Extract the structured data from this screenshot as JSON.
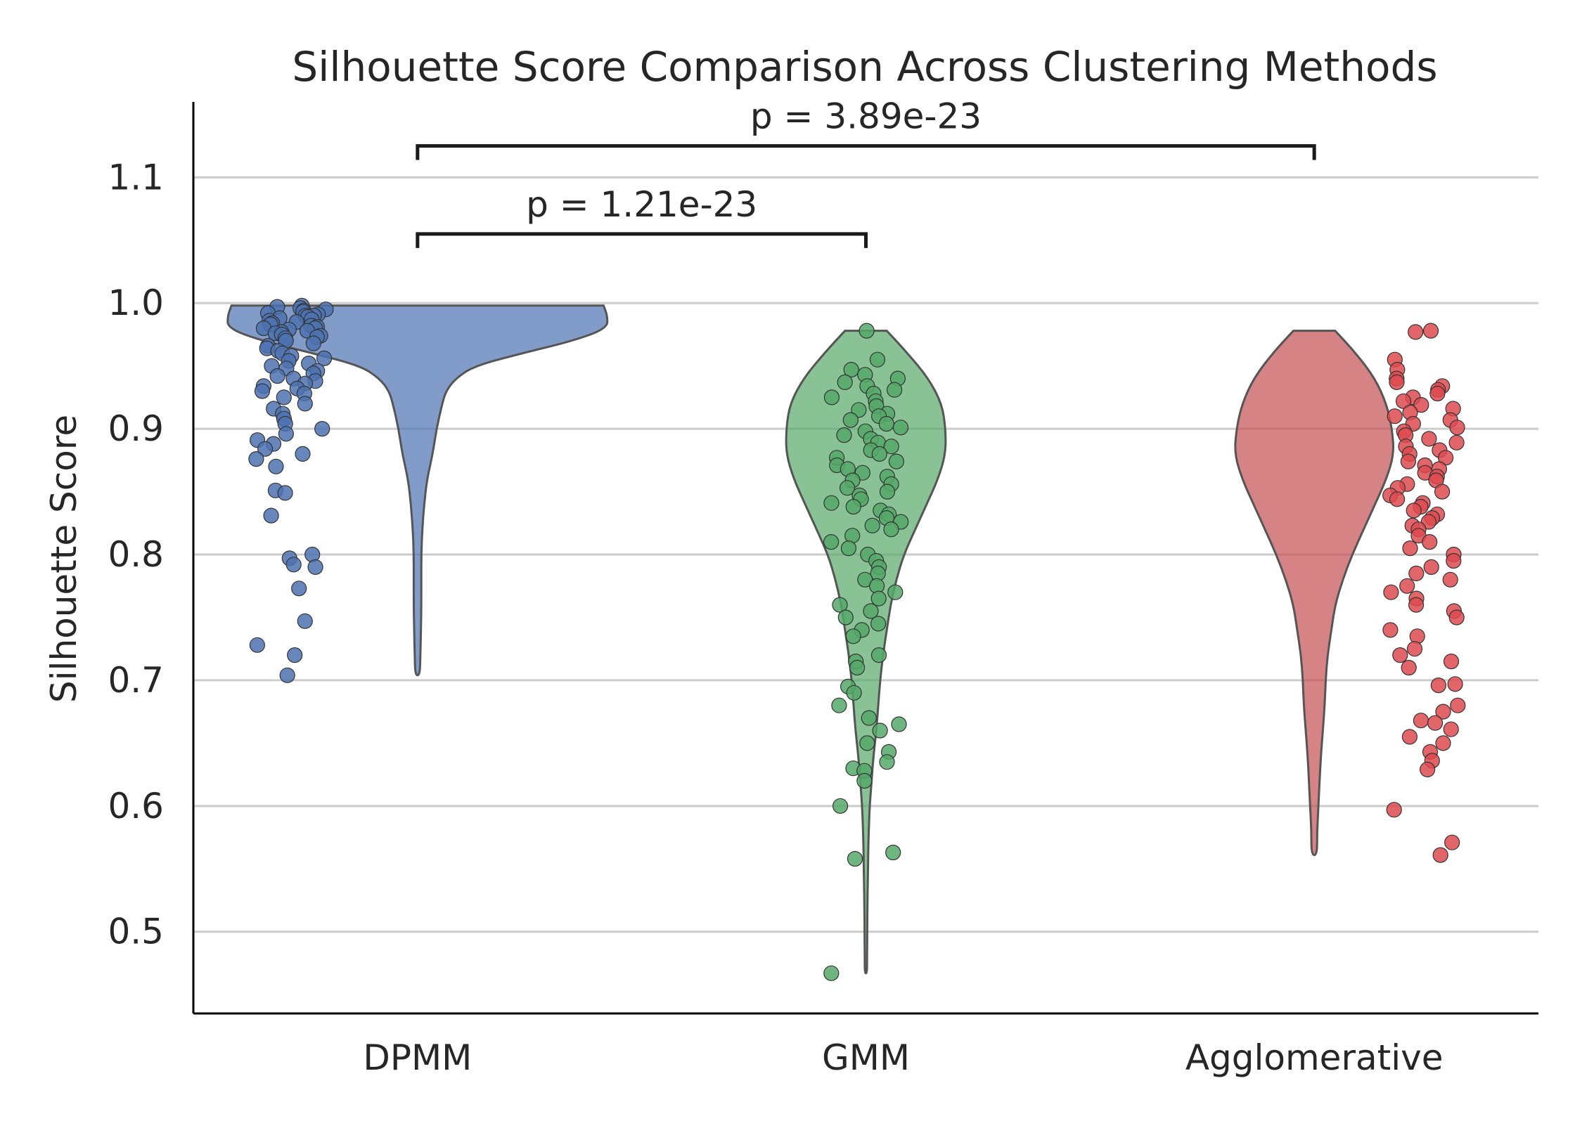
{
  "chart_data": {
    "type": "violin",
    "title": "Silhouette Score Comparison Across Clustering Methods",
    "xlabel": "",
    "ylabel": "Silhouette Score",
    "ylim": [
      0.435,
      1.16
    ],
    "yticks": [
      "0.5",
      "0.6",
      "0.7",
      "0.8",
      "0.9",
      "1.0",
      "1.1"
    ],
    "grid": "horizontal",
    "categories": [
      "DPMM",
      "GMM",
      "Agglomerative"
    ],
    "colors": [
      "#4c72b0",
      "#55a868",
      "#c44e52"
    ],
    "point_colors": [
      "#4c72b0",
      "#55a868",
      "#dd4a4f"
    ],
    "violins": [
      {
        "name": "DPMM",
        "range": [
          0.704,
          0.998
        ],
        "density": [
          [
            0.998,
            0.98
          ],
          [
            0.99,
            1.0
          ],
          [
            0.98,
            1.0
          ],
          [
            0.97,
            0.82
          ],
          [
            0.96,
            0.55
          ],
          [
            0.95,
            0.3
          ],
          [
            0.94,
            0.2
          ],
          [
            0.93,
            0.15
          ],
          [
            0.92,
            0.13
          ],
          [
            0.9,
            0.1
          ],
          [
            0.88,
            0.08
          ],
          [
            0.86,
            0.05
          ],
          [
            0.84,
            0.035
          ],
          [
            0.82,
            0.025
          ],
          [
            0.8,
            0.02
          ],
          [
            0.78,
            0.02
          ],
          [
            0.76,
            0.02
          ],
          [
            0.74,
            0.018
          ],
          [
            0.72,
            0.015
          ],
          [
            0.704,
            0.012
          ]
        ]
      },
      {
        "name": "GMM",
        "range": [
          0.467,
          0.978
        ],
        "density": [
          [
            0.978,
            0.11
          ],
          [
            0.96,
            0.22
          ],
          [
            0.94,
            0.33
          ],
          [
            0.92,
            0.4
          ],
          [
            0.9,
            0.42
          ],
          [
            0.88,
            0.42
          ],
          [
            0.86,
            0.38
          ],
          [
            0.84,
            0.32
          ],
          [
            0.82,
            0.26
          ],
          [
            0.8,
            0.2
          ],
          [
            0.78,
            0.16
          ],
          [
            0.76,
            0.13
          ],
          [
            0.74,
            0.11
          ],
          [
            0.72,
            0.09
          ],
          [
            0.7,
            0.075
          ],
          [
            0.68,
            0.065
          ],
          [
            0.66,
            0.055
          ],
          [
            0.64,
            0.04
          ],
          [
            0.62,
            0.03
          ],
          [
            0.6,
            0.02
          ],
          [
            0.58,
            0.015
          ],
          [
            0.56,
            0.012
          ],
          [
            0.54,
            0.01
          ],
          [
            0.52,
            0.008
          ],
          [
            0.5,
            0.007
          ],
          [
            0.48,
            0.006
          ],
          [
            0.467,
            0.006
          ]
        ]
      },
      {
        "name": "Agglomerative",
        "range": [
          0.561,
          0.978
        ],
        "density": [
          [
            0.978,
            0.11
          ],
          [
            0.96,
            0.22
          ],
          [
            0.94,
            0.32
          ],
          [
            0.92,
            0.38
          ],
          [
            0.9,
            0.41
          ],
          [
            0.88,
            0.42
          ],
          [
            0.86,
            0.38
          ],
          [
            0.84,
            0.32
          ],
          [
            0.82,
            0.26
          ],
          [
            0.8,
            0.2
          ],
          [
            0.78,
            0.15
          ],
          [
            0.76,
            0.11
          ],
          [
            0.74,
            0.09
          ],
          [
            0.72,
            0.07
          ],
          [
            0.7,
            0.06
          ],
          [
            0.68,
            0.055
          ],
          [
            0.66,
            0.045
          ],
          [
            0.64,
            0.035
          ],
          [
            0.62,
            0.028
          ],
          [
            0.6,
            0.022
          ],
          [
            0.58,
            0.015
          ],
          [
            0.561,
            0.015
          ]
        ]
      }
    ],
    "points": [
      [
        0.998,
        0.997,
        0.996,
        0.995,
        0.994,
        0.993,
        0.992,
        0.991,
        0.99,
        0.99,
        0.989,
        0.988,
        0.987,
        0.986,
        0.985,
        0.984,
        0.983,
        0.982,
        0.981,
        0.98,
        0.98,
        0.979,
        0.978,
        0.977,
        0.976,
        0.975,
        0.974,
        0.973,
        0.972,
        0.97,
        0.968,
        0.966,
        0.964,
        0.962,
        0.96,
        0.958,
        0.956,
        0.954,
        0.952,
        0.95,
        0.948,
        0.946,
        0.944,
        0.942,
        0.94,
        0.938,
        0.936,
        0.934,
        0.932,
        0.93,
        0.928,
        0.925,
        0.92,
        0.916,
        0.912,
        0.908,
        0.904,
        0.9,
        0.896,
        0.891,
        0.888,
        0.884,
        0.88,
        0.876,
        0.87,
        0.851,
        0.849,
        0.831,
        0.8,
        0.797,
        0.792,
        0.79,
        0.773,
        0.747,
        0.728,
        0.72,
        0.704
      ],
      [
        0.978,
        0.955,
        0.947,
        0.943,
        0.94,
        0.937,
        0.934,
        0.931,
        0.928,
        0.925,
        0.922,
        0.918,
        0.915,
        0.912,
        0.91,
        0.907,
        0.904,
        0.901,
        0.898,
        0.895,
        0.892,
        0.889,
        0.886,
        0.883,
        0.88,
        0.877,
        0.874,
        0.871,
        0.868,
        0.865,
        0.862,
        0.859,
        0.856,
        0.853,
        0.85,
        0.847,
        0.844,
        0.841,
        0.838,
        0.835,
        0.832,
        0.829,
        0.826,
        0.823,
        0.82,
        0.815,
        0.81,
        0.805,
        0.8,
        0.795,
        0.79,
        0.785,
        0.78,
        0.775,
        0.77,
        0.765,
        0.76,
        0.755,
        0.75,
        0.745,
        0.74,
        0.735,
        0.72,
        0.715,
        0.71,
        0.695,
        0.69,
        0.68,
        0.67,
        0.665,
        0.66,
        0.65,
        0.643,
        0.635,
        0.63,
        0.628,
        0.62,
        0.6,
        0.563,
        0.558,
        0.467
      ],
      [
        0.978,
        0.977,
        0.955,
        0.947,
        0.94,
        0.937,
        0.934,
        0.931,
        0.928,
        0.925,
        0.922,
        0.919,
        0.916,
        0.913,
        0.91,
        0.907,
        0.904,
        0.901,
        0.898,
        0.895,
        0.892,
        0.889,
        0.886,
        0.883,
        0.88,
        0.877,
        0.874,
        0.871,
        0.868,
        0.865,
        0.862,
        0.859,
        0.856,
        0.853,
        0.85,
        0.847,
        0.844,
        0.841,
        0.838,
        0.835,
        0.832,
        0.829,
        0.826,
        0.823,
        0.82,
        0.815,
        0.81,
        0.805,
        0.8,
        0.795,
        0.79,
        0.785,
        0.78,
        0.775,
        0.77,
        0.765,
        0.76,
        0.755,
        0.75,
        0.74,
        0.735,
        0.725,
        0.72,
        0.715,
        0.71,
        0.697,
        0.696,
        0.68,
        0.675,
        0.668,
        0.666,
        0.661,
        0.655,
        0.65,
        0.643,
        0.636,
        0.629,
        0.597,
        0.571,
        0.561
      ]
    ],
    "annotations": [
      {
        "text": "p = 1.21e-23",
        "from": 0,
        "to": 1,
        "y": 1.055
      },
      {
        "text": "p = 3.89e-23",
        "from": 0,
        "to": 2,
        "y": 1.125
      }
    ]
  }
}
